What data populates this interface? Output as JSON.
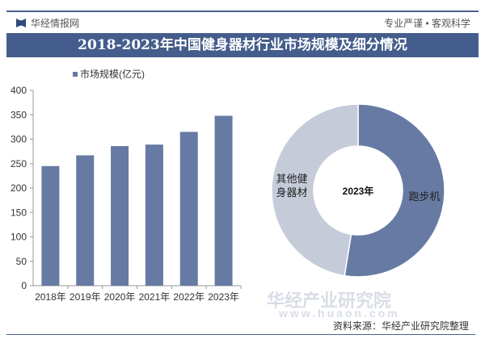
{
  "header": {
    "brand": "华经情报网",
    "slogan": "专业严谨 • 客观科学",
    "title": "2018-2023年中国健身器材行业市场规模及细分情况"
  },
  "footer": {
    "source": "资料来源：华经产业研究院整理",
    "watermark": "华经产业研究院",
    "watermark_url": "www.huaon.com"
  },
  "colors": {
    "primary": "#667aa3",
    "secondary": "#c5cbd9",
    "title_bg": "#445d8c"
  },
  "chart_data": [
    {
      "type": "bar",
      "title": "",
      "legend": "市场规模(亿元)",
      "legend_position": "top-left",
      "categories": [
        "2018年",
        "2019年",
        "2020年",
        "2021年",
        "2022年",
        "2023年"
      ],
      "values": [
        245,
        267,
        286,
        289,
        315,
        348
      ],
      "ylim": [
        0,
        400
      ],
      "yticks": [
        "0",
        "50",
        "100",
        "150",
        "200",
        "250",
        "300",
        "350",
        "400"
      ],
      "grid": false
    },
    {
      "type": "pie",
      "donut": true,
      "center_label": "2023年",
      "labels": [
        "跑步机",
        "其他健身器材"
      ],
      "label_lines": [
        [
          "跑步机"
        ],
        [
          "其他健",
          "身器材"
        ]
      ],
      "values": [
        52.5,
        47.5
      ]
    }
  ]
}
